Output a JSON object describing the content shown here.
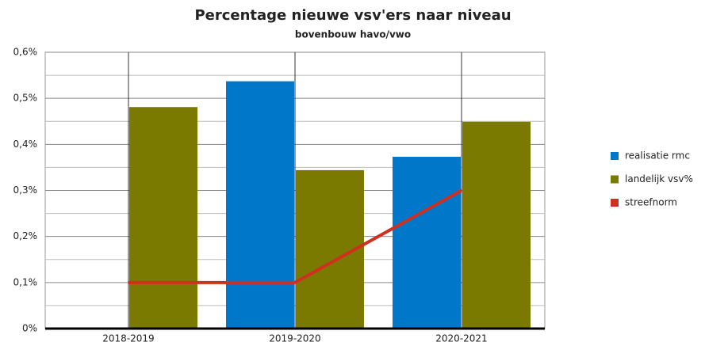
{
  "chart_data": {
    "type": "bar",
    "title": "Percentage nieuwe vsv'ers naar niveau",
    "subtitle": "bovenbouw havo/vwo",
    "categories": [
      "2018-2019",
      "2019-2020",
      "2020-2021"
    ],
    "series": [
      {
        "name": "realisatie rmc",
        "type": "bar",
        "color": "#0077c8",
        "values": [
          null,
          0.537,
          0.373
        ]
      },
      {
        "name": "landelijk vsv%",
        "type": "bar",
        "color": "#7a7a00",
        "values": [
          0.481,
          0.344,
          0.449
        ]
      },
      {
        "name": "streefnorm",
        "type": "line",
        "color": "#d03020",
        "values": [
          0.1,
          0.1,
          0.3
        ]
      }
    ],
    "ylim": [
      0,
      0.6
    ],
    "yticks": [
      {
        "value": 0,
        "label": "0%"
      },
      {
        "value": 0.1,
        "label": "0,1%"
      },
      {
        "value": 0.2,
        "label": "0,2%"
      },
      {
        "value": 0.3,
        "label": "0,3%"
      },
      {
        "value": 0.4,
        "label": "0,4%"
      },
      {
        "value": 0.5,
        "label": "0,5%"
      },
      {
        "value": 0.6,
        "label": "0,6%"
      }
    ],
    "minor_yticks": [
      0.05,
      0.15,
      0.25,
      0.35,
      0.45,
      0.55
    ],
    "grid": true,
    "legend": "right"
  }
}
